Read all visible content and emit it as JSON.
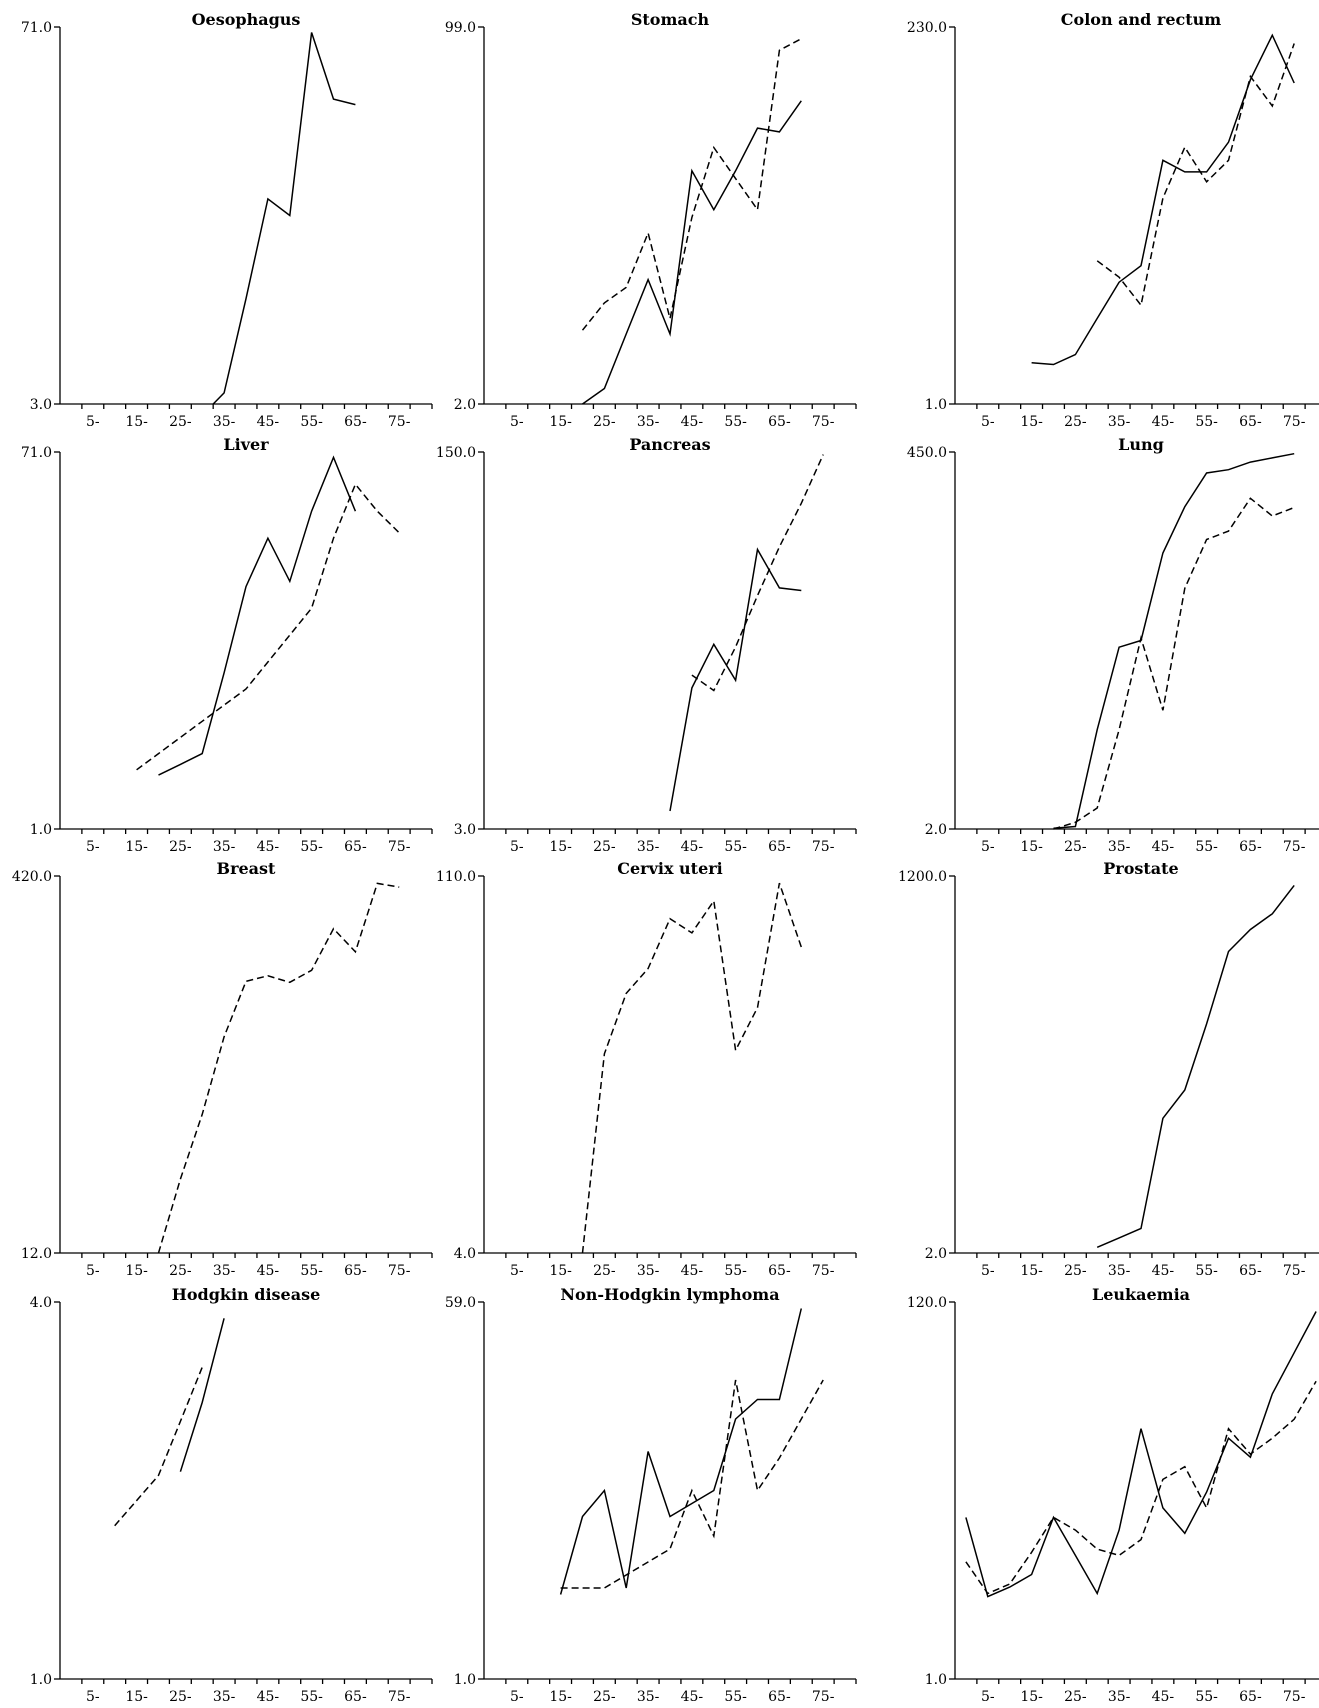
{
  "chart_data": [
    {
      "type": "line",
      "title": "Oesophagus",
      "ylim": [
        3.0,
        71.0
      ],
      "ytick_labels": [
        "3.0",
        "71.0"
      ],
      "categories": [
        "5-",
        "15-",
        "25-",
        "35-",
        "45-",
        "55-",
        "65-",
        "75-"
      ],
      "series": [
        {
          "style": "solid",
          "points": [
            [
              7.5,
              3
            ],
            [
              8,
              5
            ],
            [
              9,
              22
            ],
            [
              10,
              40
            ],
            [
              11,
              37
            ],
            [
              12,
              70
            ],
            [
              13,
              58
            ],
            [
              14,
              57
            ]
          ]
        },
        {
          "style": "dashed",
          "points": []
        }
      ]
    },
    {
      "type": "line",
      "title": "Stomach",
      "ylim": [
        2.0,
        99.0
      ],
      "ytick_labels": [
        "2.0",
        "99.0"
      ],
      "categories": [
        "5-",
        "15-",
        "25-",
        "35-",
        "45-",
        "55-",
        "65-",
        "75-"
      ],
      "series": [
        {
          "style": "solid",
          "points": [
            [
              5,
              2
            ],
            [
              6,
              6
            ],
            [
              7,
              20
            ],
            [
              8,
              34
            ],
            [
              9,
              20
            ],
            [
              10,
              62
            ],
            [
              11,
              52
            ],
            [
              12,
              62
            ],
            [
              13,
              73
            ],
            [
              14,
              72
            ],
            [
              15,
              80
            ]
          ]
        },
        {
          "style": "dashed",
          "points": [
            [
              5,
              21
            ],
            [
              6,
              28
            ],
            [
              7,
              32
            ],
            [
              8,
              46
            ],
            [
              9,
              24
            ],
            [
              10,
              50
            ],
            [
              11,
              68
            ],
            [
              12,
              60
            ],
            [
              13,
              52
            ],
            [
              14,
              93
            ],
            [
              15,
              96
            ]
          ]
        }
      ]
    },
    {
      "type": "line",
      "title": "Colon and rectum",
      "ylim": [
        1.0,
        230.0
      ],
      "ytick_labels": [
        "1.0",
        "230.0"
      ],
      "categories": [
        "5-",
        "15-",
        "25-",
        "35-",
        "45-",
        "55-",
        "65-",
        "75-"
      ],
      "series": [
        {
          "style": "solid",
          "points": [
            [
              4,
              26
            ],
            [
              5,
              25
            ],
            [
              6,
              31
            ],
            [
              7,
              53
            ],
            [
              8,
              75
            ],
            [
              9,
              85
            ],
            [
              10,
              149
            ],
            [
              11,
              142
            ],
            [
              12,
              142
            ],
            [
              13,
              160
            ],
            [
              14,
              198
            ],
            [
              15,
              225
            ],
            [
              16,
              196
            ]
          ]
        },
        {
          "style": "dashed",
          "points": [
            [
              7,
              88
            ],
            [
              8,
              78
            ],
            [
              9,
              61
            ],
            [
              10,
              126
            ],
            [
              11,
              157
            ],
            [
              12,
              136
            ],
            [
              13,
              149
            ],
            [
              14,
              200
            ],
            [
              15,
              182
            ],
            [
              16,
              220
            ]
          ]
        }
      ]
    },
    {
      "type": "line",
      "title": "Liver",
      "ylim": [
        1.0,
        71.0
      ],
      "ytick_labels": [
        "1.0",
        "71.0"
      ],
      "categories": [
        "5-",
        "15-",
        "25-",
        "35-",
        "45-",
        "55-",
        "65-",
        "75-"
      ],
      "series": [
        {
          "style": "solid",
          "points": [
            [
              5,
              11
            ],
            [
              6,
              13
            ],
            [
              7,
              15
            ],
            [
              8,
              30
            ],
            [
              9,
              46
            ],
            [
              10,
              55
            ],
            [
              11,
              47
            ],
            [
              12,
              60
            ],
            [
              13,
              70
            ],
            [
              14,
              60
            ]
          ]
        },
        {
          "style": "dashed",
          "points": [
            [
              4,
              12
            ],
            [
              5,
              15
            ],
            [
              6,
              18
            ],
            [
              7,
              21
            ],
            [
              8,
              24
            ],
            [
              9,
              27
            ],
            [
              10,
              32
            ],
            [
              11,
              37
            ],
            [
              12,
              42
            ],
            [
              13,
              55
            ],
            [
              14,
              65
            ],
            [
              15,
              60
            ],
            [
              16,
              56
            ]
          ]
        }
      ]
    },
    {
      "type": "line",
      "title": "Pancreas",
      "ylim": [
        3.0,
        150.0
      ],
      "ytick_labels": [
        "3.0",
        "150.0"
      ],
      "categories": [
        "5-",
        "15-",
        "25-",
        "35-",
        "45-",
        "55-",
        "65-",
        "75-"
      ],
      "series": [
        {
          "style": "solid",
          "points": [
            [
              9,
              10
            ],
            [
              10,
              58
            ],
            [
              11,
              75
            ],
            [
              12,
              61
            ],
            [
              13,
              112
            ],
            [
              14,
              97
            ],
            [
              15,
              96
            ]
          ]
        },
        {
          "style": "dashed",
          "points": [
            [
              10,
              63
            ],
            [
              11,
              57
            ],
            [
              12,
              74
            ],
            [
              13,
              94
            ],
            [
              14,
              113
            ],
            [
              15,
              130
            ],
            [
              16,
              149
            ]
          ]
        }
      ]
    },
    {
      "type": "line",
      "title": "Lung",
      "ylim": [
        2.0,
        450.0
      ],
      "ytick_labels": [
        "2.0",
        "450.0"
      ],
      "categories": [
        "5-",
        "15-",
        "25-",
        "35-",
        "45-",
        "55-",
        "65-",
        "75-"
      ],
      "series": [
        {
          "style": "solid",
          "points": [
            [
              5,
              3
            ],
            [
              6,
              5
            ],
            [
              7,
              120
            ],
            [
              8,
              218
            ],
            [
              9,
              226
            ],
            [
              10,
              330
            ],
            [
              11,
              385
            ],
            [
              12,
              425
            ],
            [
              13,
              429
            ],
            [
              14,
              438
            ],
            [
              15,
              443
            ],
            [
              16,
              448
            ]
          ]
        },
        {
          "style": "dashed",
          "points": [
            [
              5,
              2
            ],
            [
              6,
              10
            ],
            [
              7,
              27
            ],
            [
              8,
              120
            ],
            [
              9,
              229
            ],
            [
              10,
              143
            ],
            [
              11,
              288
            ],
            [
              12,
              346
            ],
            [
              13,
              356
            ],
            [
              14,
              395
            ],
            [
              15,
              374
            ],
            [
              16,
              384
            ]
          ]
        }
      ]
    },
    {
      "type": "line",
      "title": "Breast",
      "ylim": [
        12.0,
        420.0
      ],
      "ytick_labels": [
        "12.0",
        "420.0"
      ],
      "categories": [
        "5-",
        "15-",
        "25-",
        "35-",
        "45-",
        "55-",
        "65-",
        "75-"
      ],
      "series": [
        {
          "style": "solid",
          "points": []
        },
        {
          "style": "dashed",
          "points": [
            [
              5,
              12
            ],
            [
              6,
              92
            ],
            [
              7,
              162
            ],
            [
              8,
              246
            ],
            [
              9,
              306
            ],
            [
              10,
              312
            ],
            [
              11,
              305
            ],
            [
              12,
              318
            ],
            [
              13,
              363
            ],
            [
              14,
              338
            ],
            [
              15,
              412
            ],
            [
              16,
              408
            ]
          ]
        }
      ]
    },
    {
      "type": "line",
      "title": "Cervix uteri",
      "ylim": [
        4.0,
        110.0
      ],
      "ytick_labels": [
        "4.0",
        "110.0"
      ],
      "categories": [
        "5-",
        "15-",
        "25-",
        "35-",
        "45-",
        "55-",
        "65-",
        "75-"
      ],
      "series": [
        {
          "style": "solid",
          "points": []
        },
        {
          "style": "dashed",
          "points": [
            [
              5,
              4
            ],
            [
              6,
              60
            ],
            [
              7,
              77
            ],
            [
              8,
              84
            ],
            [
              9,
              98
            ],
            [
              10,
              94
            ],
            [
              11,
              103
            ],
            [
              12,
              61
            ],
            [
              13,
              73
            ],
            [
              14,
              108
            ],
            [
              15,
              90
            ]
          ]
        }
      ]
    },
    {
      "type": "line",
      "title": "Prostate",
      "ylim": [
        2.0,
        1200.0
      ],
      "ytick_labels": [
        "2.0",
        "1200.0"
      ],
      "categories": [
        "5-",
        "15-",
        "25-",
        "35-",
        "45-",
        "55-",
        "65-",
        "75-"
      ],
      "series": [
        {
          "style": "solid",
          "points": [
            [
              7,
              20
            ],
            [
              8,
              50
            ],
            [
              9,
              80
            ],
            [
              10,
              430
            ],
            [
              11,
              520
            ],
            [
              12,
              730
            ],
            [
              13,
              960
            ],
            [
              14,
              1030
            ],
            [
              15,
              1080
            ],
            [
              16,
              1170
            ]
          ]
        },
        {
          "style": "dashed",
          "points": []
        }
      ]
    },
    {
      "type": "line",
      "title": "Hodgkin disease",
      "ylim": [
        1.0,
        4.0
      ],
      "ytick_labels": [
        "1.0",
        "4.0"
      ],
      "categories": [
        "5-",
        "15-",
        "25-",
        "35-",
        "45-",
        "55-",
        "65-",
        "75-"
      ],
      "series": [
        {
          "style": "solid",
          "points": [
            [
              6,
              2.65
            ],
            [
              7,
              3.2
            ],
            [
              8,
              3.87
            ]
          ]
        },
        {
          "style": "dashed",
          "points": [
            [
              3,
              2.22
            ],
            [
              4,
              2.42
            ],
            [
              5,
              2.62
            ],
            [
              6,
              3.05
            ],
            [
              7,
              3.48
            ]
          ]
        }
      ]
    },
    {
      "type": "line",
      "title": "Non-Hodgkin lymphoma",
      "ylim": [
        1.0,
        59.0
      ],
      "ytick_labels": [
        "1.0",
        "59.0"
      ],
      "categories": [
        "5-",
        "15-",
        "25-",
        "35-",
        "45-",
        "55-",
        "65-",
        "75-"
      ],
      "series": [
        {
          "style": "solid",
          "points": [
            [
              4,
              14
            ],
            [
              5,
              26
            ],
            [
              6,
              30
            ],
            [
              7,
              15
            ],
            [
              8,
              36
            ],
            [
              9,
              26
            ],
            [
              10,
              28
            ],
            [
              11,
              30
            ],
            [
              12,
              41
            ],
            [
              13,
              44
            ],
            [
              14,
              44
            ],
            [
              15,
              58
            ]
          ]
        },
        {
          "style": "dashed",
          "points": [
            [
              4,
              15
            ],
            [
              5,
              15
            ],
            [
              6,
              15
            ],
            [
              7,
              17
            ],
            [
              8,
              19
            ],
            [
              9,
              21
            ],
            [
              10,
              30
            ],
            [
              11,
              23
            ],
            [
              12,
              47
            ],
            [
              13,
              30
            ],
            [
              14,
              35
            ],
            [
              15,
              41
            ],
            [
              16,
              47
            ]
          ]
        }
      ]
    },
    {
      "type": "line",
      "title": "Leukaemia",
      "ylim": [
        1.0,
        120.0
      ],
      "ytick_labels": [
        "1.0",
        "120.0"
      ],
      "categories": [
        "5-",
        "15-",
        "25-",
        "35-",
        "45-",
        "55-",
        "65-",
        "75-"
      ],
      "series": [
        {
          "style": "solid",
          "points": [
            [
              1,
              52
            ],
            [
              2,
              27
            ],
            [
              3,
              30
            ],
            [
              4,
              34
            ],
            [
              5,
              52
            ],
            [
              6,
              40
            ],
            [
              7,
              28
            ],
            [
              8,
              48
            ],
            [
              9,
              80
            ],
            [
              10,
              55
            ],
            [
              11,
              47
            ],
            [
              12,
              60
            ],
            [
              13,
              77
            ],
            [
              14,
              71
            ],
            [
              15,
              91
            ],
            [
              16,
              104
            ],
            [
              17,
              117
            ]
          ]
        },
        {
          "style": "dashed",
          "points": [
            [
              1,
              38
            ],
            [
              2,
              28
            ],
            [
              3,
              31
            ],
            [
              4,
              41
            ],
            [
              5,
              52
            ],
            [
              6,
              48
            ],
            [
              7,
              42
            ],
            [
              8,
              40
            ],
            [
              9,
              45
            ],
            [
              10,
              64
            ],
            [
              11,
              68
            ],
            [
              12,
              55
            ],
            [
              13,
              80
            ],
            [
              14,
              72
            ],
            [
              15,
              77
            ],
            [
              16,
              83
            ],
            [
              17,
              95
            ]
          ]
        }
      ]
    }
  ]
}
